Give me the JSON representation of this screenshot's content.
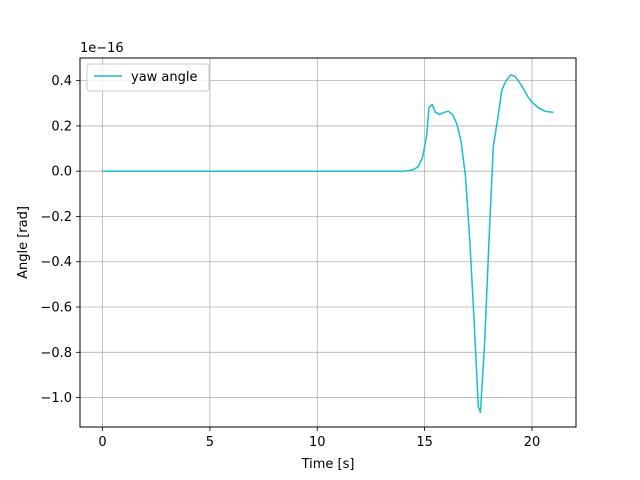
{
  "chart_data": {
    "type": "line",
    "title": "",
    "xlabel": "Time [s]",
    "ylabel": "Angle [rad]",
    "offset_label": "1e−16",
    "xlim": [
      -1.05,
      22.05
    ],
    "ylim": [
      -1.13,
      0.5
    ],
    "xticks": [
      0,
      5,
      10,
      15,
      20
    ],
    "yticks": [
      -1.0,
      -0.8,
      -0.6,
      -0.4,
      -0.2,
      0.0,
      0.2,
      0.4
    ],
    "ytick_labels": [
      "−1.0",
      "−0.8",
      "−0.6",
      "−0.4",
      "−0.2",
      "0.0",
      "0.2",
      "0.4"
    ],
    "grid": true,
    "legend_position": "top-left",
    "series": [
      {
        "name": "yaw angle",
        "color": "#17becf",
        "x": [
          0,
          1,
          2,
          3,
          4,
          5,
          6,
          7,
          8,
          9,
          10,
          11,
          12,
          13,
          14,
          14.3,
          14.5,
          14.7,
          14.9,
          15.1,
          15.2,
          15.35,
          15.5,
          15.7,
          15.9,
          16.1,
          16.3,
          16.5,
          16.7,
          16.9,
          17.1,
          17.3,
          17.5,
          17.6,
          17.8,
          18.0,
          18.2,
          18.4,
          18.6,
          18.8,
          19.0,
          19.2,
          19.4,
          19.6,
          19.8,
          20.0,
          20.3,
          20.6,
          21.0
        ],
        "y": [
          0,
          0,
          0,
          0,
          0,
          0,
          0,
          0,
          0,
          0,
          0,
          0,
          0,
          0,
          0,
          0.003,
          0.008,
          0.02,
          0.06,
          0.16,
          0.28,
          0.295,
          0.26,
          0.25,
          0.26,
          0.265,
          0.25,
          0.21,
          0.13,
          -0.02,
          -0.3,
          -0.65,
          -1.04,
          -1.065,
          -0.75,
          -0.3,
          0.11,
          0.23,
          0.36,
          0.4,
          0.425,
          0.42,
          0.395,
          0.365,
          0.33,
          0.305,
          0.28,
          0.265,
          0.26
        ]
      }
    ]
  }
}
